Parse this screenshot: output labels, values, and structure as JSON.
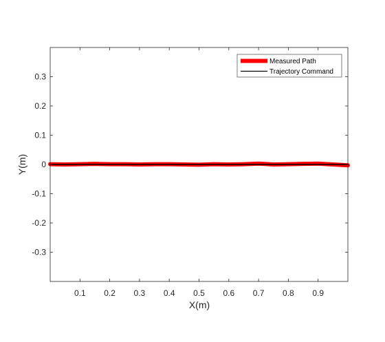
{
  "chart_data": {
    "type": "line",
    "xlabel": "X(m)",
    "ylabel": "Y(m)",
    "xlim": [
      0,
      1
    ],
    "ylim": [
      -0.4,
      0.4
    ],
    "xticks": [
      0.1,
      0.2,
      0.3,
      0.4,
      0.5,
      0.6,
      0.7,
      0.8,
      0.9
    ],
    "xtick_labels": [
      "0.1",
      "0.2",
      "0.3",
      "0.4",
      "0.5",
      "0.6",
      "0.7",
      "0.8",
      "0.9"
    ],
    "yticks": [
      -0.3,
      -0.2,
      -0.1,
      0,
      0.1,
      0.2,
      0.3
    ],
    "ytick_labels": [
      "-0.3",
      "-0.2",
      "-0.1",
      "0",
      "0.1",
      "0.2",
      "0.3"
    ],
    "grid": false,
    "legend_position": "top-right",
    "series": [
      {
        "name": "Measured Path",
        "color": "#ff0000",
        "x": [
          0,
          0.05,
          0.1,
          0.15,
          0.2,
          0.25,
          0.3,
          0.35,
          0.4,
          0.45,
          0.5,
          0.55,
          0.6,
          0.65,
          0.7,
          0.75,
          0.8,
          0.85,
          0.9,
          0.95,
          1.0
        ],
        "y": [
          0.001,
          0.0,
          0.001,
          0.002,
          0.001,
          0.001,
          0.0,
          0.001,
          0.001,
          0.0,
          -0.001,
          0.001,
          0.0,
          0.001,
          0.003,
          0.0,
          0.001,
          0.002,
          0.003,
          0.0,
          -0.003
        ]
      },
      {
        "name": "Trajectory Command",
        "color": "#000000",
        "x": [
          0,
          1.0
        ],
        "y": [
          0,
          0
        ]
      }
    ]
  }
}
